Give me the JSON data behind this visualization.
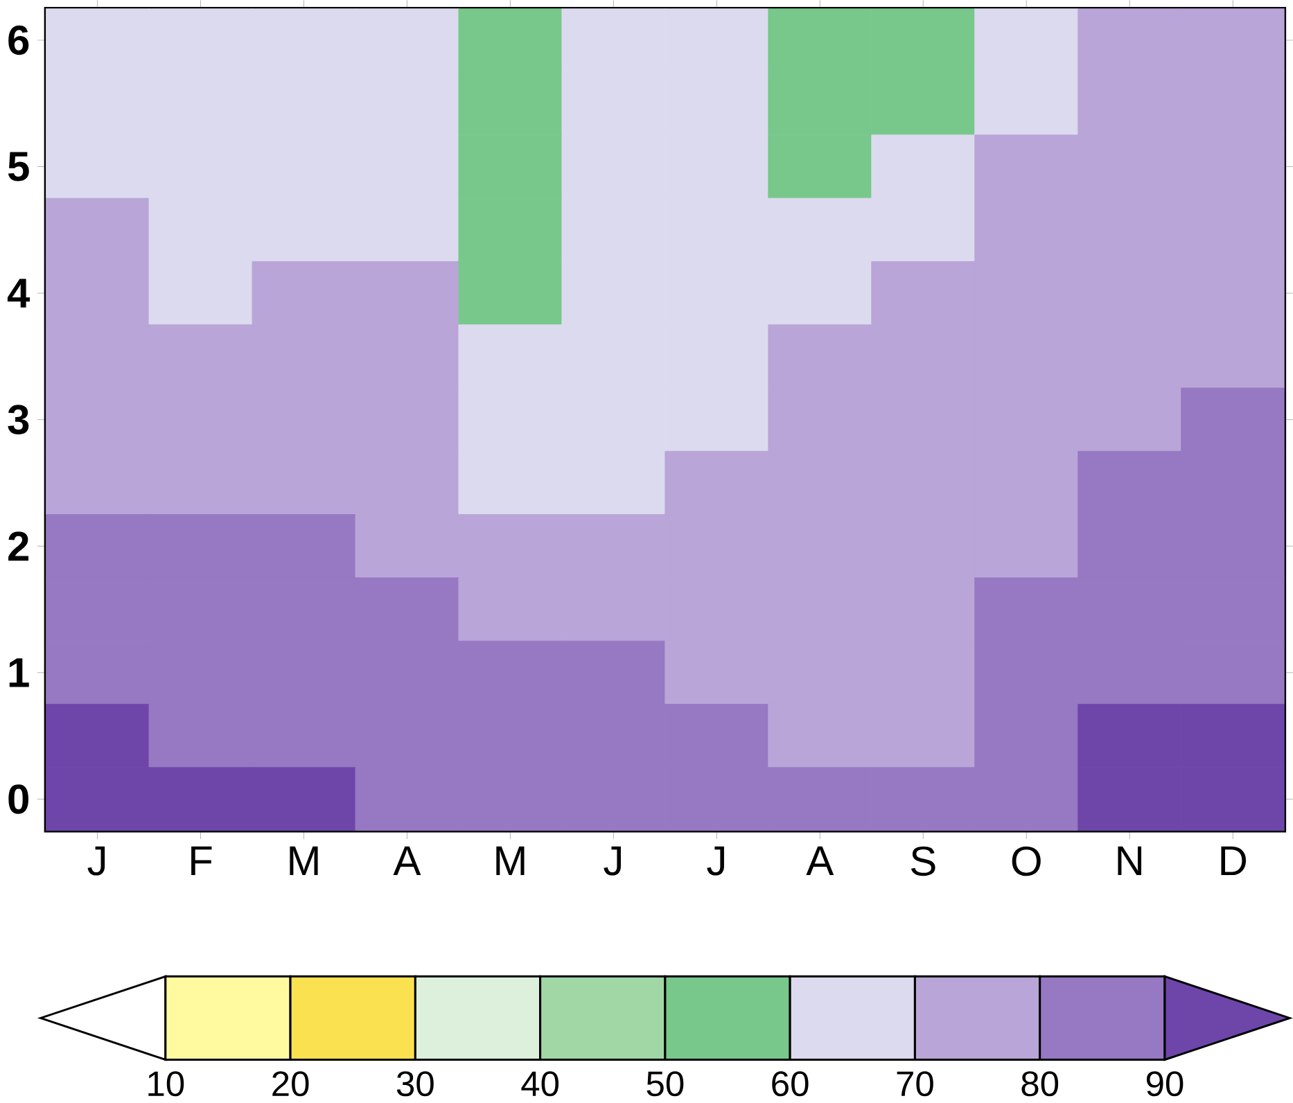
{
  "chart_data": {
    "type": "heatmap",
    "categories": [
      "J",
      "F",
      "M",
      "A",
      "M",
      "J",
      "J",
      "A",
      "S",
      "O",
      "N",
      "D"
    ],
    "y_categories": [
      "6",
      null,
      "5",
      null,
      "4",
      null,
      "3",
      null,
      "2",
      null,
      "1",
      null,
      "0"
    ],
    "cells": [
      [
        65,
        65,
        65,
        65,
        55,
        65,
        65,
        55,
        55,
        65,
        75,
        75
      ],
      [
        65,
        65,
        65,
        65,
        55,
        65,
        65,
        55,
        55,
        65,
        75,
        75
      ],
      [
        65,
        65,
        65,
        65,
        55,
        65,
        65,
        55,
        65,
        75,
        75,
        75
      ],
      [
        75,
        65,
        65,
        65,
        55,
        65,
        65,
        65,
        65,
        75,
        75,
        75
      ],
      [
        75,
        65,
        75,
        75,
        55,
        65,
        65,
        65,
        75,
        75,
        75,
        75
      ],
      [
        75,
        75,
        75,
        75,
        65,
        65,
        65,
        75,
        75,
        75,
        75,
        75
      ],
      [
        75,
        75,
        75,
        75,
        65,
        65,
        65,
        75,
        75,
        75,
        75,
        85
      ],
      [
        75,
        75,
        75,
        75,
        65,
        65,
        75,
        75,
        75,
        75,
        85,
        85
      ],
      [
        85,
        85,
        85,
        75,
        75,
        75,
        75,
        75,
        75,
        75,
        85,
        85
      ],
      [
        85,
        85,
        85,
        85,
        75,
        75,
        75,
        75,
        75,
        85,
        85,
        85
      ],
      [
        85,
        85,
        85,
        85,
        85,
        85,
        75,
        75,
        75,
        85,
        85,
        85
      ],
      [
        95,
        85,
        85,
        85,
        85,
        85,
        85,
        75,
        75,
        85,
        95,
        95
      ],
      [
        95,
        95,
        95,
        85,
        85,
        85,
        85,
        85,
        85,
        85,
        95,
        95
      ]
    ],
    "clim": [
      0,
      100
    ],
    "cticks": [
      10,
      20,
      30,
      40,
      50,
      60,
      70,
      80,
      90
    ]
  }
}
